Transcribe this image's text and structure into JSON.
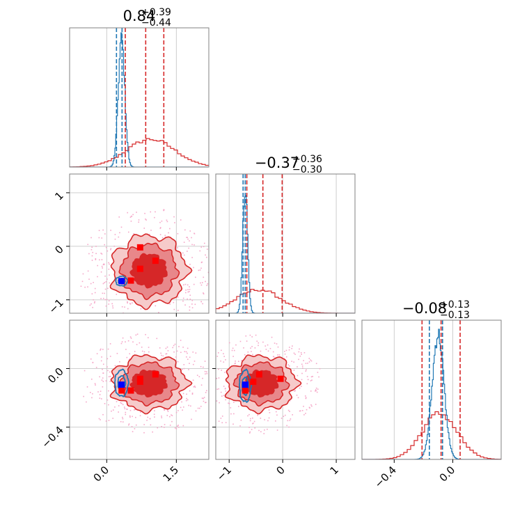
{
  "figure": {
    "panel_titles": [
      {
        "main": "0.84",
        "sup": "+0.39",
        "sub": "−0.44"
      },
      {
        "main": "−0.37",
        "sup": "+0.36",
        "sub": "−0.30"
      },
      {
        "main": "−0.08",
        "sup": "+0.13",
        "sub": "−0.13"
      }
    ],
    "colors": {
      "red": "#d62728",
      "red_mid": "#e8878a",
      "red_light": "#f6caca",
      "blue": "#1f77b4",
      "truth_red": "#ff0000",
      "truth_blue": "#0000ff",
      "scatter": "#f5a7c8"
    }
  },
  "chart_data": {
    "type": "corner",
    "parameters": [
      {
        "range": [
          -0.8,
          2.2
        ],
        "ticks": [
          0.0,
          1.5
        ],
        "tick_labels": [
          "0.0",
          "1.5"
        ]
      },
      {
        "range": [
          -1.25,
          1.35
        ],
        "ticks": [
          -1,
          0,
          1
        ],
        "tick_labels": [
          "−1",
          "0",
          "1"
        ]
      },
      {
        "range": [
          -0.62,
          0.33
        ],
        "ticks": [
          -0.4,
          0.0
        ],
        "tick_labels": [
          "−0.4",
          "0.0"
        ]
      }
    ],
    "marginals": [
      {
        "red": {
          "center": 0.95,
          "width": 0.52,
          "peak": 0.2
        },
        "blue": {
          "center": 0.32,
          "width": 0.07,
          "peak": 0.92
        },
        "red_quantiles": [
          0.4,
          0.84,
          1.23
        ],
        "blue_quantiles": [
          0.21,
          0.33
        ]
      },
      {
        "red": {
          "center": -0.45,
          "width": 0.42,
          "peak": 0.17
        },
        "blue": {
          "center": -0.7,
          "width": 0.045,
          "peak": 0.9
        },
        "red_quantiles": [
          -0.67,
          -0.37,
          -0.01
        ],
        "blue_quantiles": [
          -0.74,
          -0.7
        ]
      },
      {
        "red": {
          "center": -0.09,
          "width": 0.12,
          "peak": 0.33
        },
        "blue": {
          "center": -0.1,
          "width": 0.04,
          "peak": 0.9
        },
        "red_quantiles": [
          -0.21,
          -0.08,
          0.05
        ],
        "blue_quantiles": [
          -0.16,
          -0.07
        ]
      }
    ],
    "pairs": [
      {
        "x_param": 0,
        "y_param": 1,
        "red_center": [
          0.85,
          -0.45
        ],
        "red_scale": [
          0.52,
          0.42
        ],
        "blue_center": [
          0.32,
          -0.65
        ],
        "blue_scale": [
          0.07,
          0.05
        ],
        "red_points": [
          [
            0.72,
            -0.02
          ],
          [
            0.72,
            -0.42
          ],
          [
            1.05,
            -0.27
          ],
          [
            0.52,
            -0.64
          ]
        ],
        "blue_point": [
          0.32,
          -0.65
        ]
      },
      {
        "x_param": 0,
        "y_param": 2,
        "red_center": [
          0.85,
          -0.1
        ],
        "red_scale": [
          0.52,
          0.12
        ],
        "blue_center": [
          0.32,
          -0.1
        ],
        "blue_scale": [
          0.08,
          0.05
        ],
        "red_points": [
          [
            0.72,
            -0.07
          ],
          [
            1.05,
            -0.04
          ],
          [
            0.52,
            -0.15
          ],
          [
            0.32,
            -0.15
          ],
          [
            0.72,
            -0.09
          ]
        ],
        "blue_point": [
          0.32,
          -0.11
        ]
      },
      {
        "x_param": 1,
        "y_param": 2,
        "red_center": [
          -0.45,
          -0.1
        ],
        "red_scale": [
          0.42,
          0.12
        ],
        "blue_center": [
          -0.7,
          -0.12
        ],
        "blue_scale": [
          0.06,
          0.06
        ],
        "red_points": [
          [
            -0.44,
            -0.04
          ],
          [
            -0.55,
            -0.09
          ],
          [
            -0.04,
            -0.07
          ],
          [
            -0.7,
            -0.15
          ]
        ],
        "blue_point": [
          -0.7,
          -0.11
        ]
      }
    ]
  }
}
